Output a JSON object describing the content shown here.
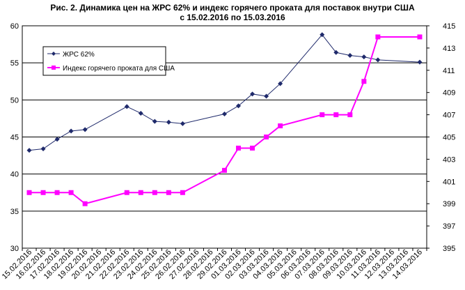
{
  "chart_data": {
    "type": "line",
    "title_lines": [
      "Рис. 2. Динамика цен на ЖРС 62% и индекс горячего проката для поставок внутри США",
      "с 15.02.2016 по 15.03.2016"
    ],
    "categories": [
      "15.02.2016",
      "16.02.2016",
      "17.02.2016",
      "18.02.2016",
      "19.02.2016",
      "20.02.2016",
      "21.02.2016",
      "22.02.2016",
      "23.02.2016",
      "24.02.2016",
      "25.02.2016",
      "26.02.2016",
      "27.02.2016",
      "28.02.2016",
      "29.02.2016",
      "01.03.2016",
      "02.03.2016",
      "03.03.2016",
      "04.03.2016",
      "05.03.2016",
      "06.03.2016",
      "07.03.2016",
      "08.03.2016",
      "09.03.2016",
      "10.03.2016",
      "11.03.2016",
      "12.03.2016",
      "13.03.2016",
      "14.03.2016"
    ],
    "left_axis": {
      "min": 30,
      "max": 60,
      "step": 5,
      "ticks": [
        "30",
        "35",
        "40",
        "45",
        "50",
        "55",
        "60"
      ]
    },
    "right_axis": {
      "min": 395,
      "max": 415,
      "step": 2,
      "ticks": [
        "395",
        "397",
        "399",
        "401",
        "403",
        "405",
        "407",
        "409",
        "411",
        "413",
        "415"
      ]
    },
    "grid": true,
    "legend": {
      "position": "top-left"
    },
    "series": [
      {
        "name": "ЖРС 62%",
        "axis": "left",
        "color": "#1F2A6B",
        "marker": "diamond",
        "points": [
          {
            "x": "15.02.2016",
            "y": 43.2
          },
          {
            "x": "16.02.2016",
            "y": 43.4
          },
          {
            "x": "17.02.2016",
            "y": 44.7
          },
          {
            "x": "18.02.2016",
            "y": 45.8
          },
          {
            "x": "19.02.2016",
            "y": 46.0
          },
          {
            "x": "22.02.2016",
            "y": 49.1
          },
          {
            "x": "23.02.2016",
            "y": 48.2
          },
          {
            "x": "24.02.2016",
            "y": 47.1
          },
          {
            "x": "25.02.2016",
            "y": 47.0
          },
          {
            "x": "26.02.2016",
            "y": 46.8
          },
          {
            "x": "29.02.2016",
            "y": 48.1
          },
          {
            "x": "01.03.2016",
            "y": 49.2
          },
          {
            "x": "02.03.2016",
            "y": 50.8
          },
          {
            "x": "03.03.2016",
            "y": 50.5
          },
          {
            "x": "04.03.2016",
            "y": 52.2
          },
          {
            "x": "07.03.2016",
            "y": 58.8
          },
          {
            "x": "08.03.2016",
            "y": 56.4
          },
          {
            "x": "09.03.2016",
            "y": 56.0
          },
          {
            "x": "10.03.2016",
            "y": 55.8
          },
          {
            "x": "11.03.2016",
            "y": 55.4
          },
          {
            "x": "14.03.2016",
            "y": 55.1
          }
        ]
      },
      {
        "name": "Индекс горячего проката для США",
        "axis": "right",
        "color": "#FF00FF",
        "marker": "square",
        "points": [
          {
            "x": "15.02.2016",
            "y": 400
          },
          {
            "x": "16.02.2016",
            "y": 400
          },
          {
            "x": "17.02.2016",
            "y": 400
          },
          {
            "x": "18.02.2016",
            "y": 400
          },
          {
            "x": "19.02.2016",
            "y": 399
          },
          {
            "x": "22.02.2016",
            "y": 400
          },
          {
            "x": "23.02.2016",
            "y": 400
          },
          {
            "x": "24.02.2016",
            "y": 400
          },
          {
            "x": "25.02.2016",
            "y": 400
          },
          {
            "x": "26.02.2016",
            "y": 400
          },
          {
            "x": "29.02.2016",
            "y": 402
          },
          {
            "x": "01.03.2016",
            "y": 404
          },
          {
            "x": "02.03.2016",
            "y": 404
          },
          {
            "x": "03.03.2016",
            "y": 405
          },
          {
            "x": "04.03.2016",
            "y": 406
          },
          {
            "x": "07.03.2016",
            "y": 407
          },
          {
            "x": "08.03.2016",
            "y": 407
          },
          {
            "x": "09.03.2016",
            "y": 407
          },
          {
            "x": "10.03.2016",
            "y": 410
          },
          {
            "x": "11.03.2016",
            "y": 414
          },
          {
            "x": "14.03.2016",
            "y": 414
          }
        ]
      }
    ]
  }
}
